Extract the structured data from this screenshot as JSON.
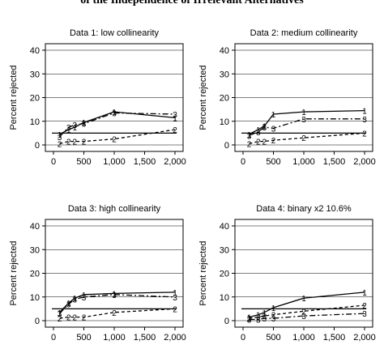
{
  "page": {
    "title": "of the Independence of Irrelevant Alternatives"
  },
  "chart_data": [
    {
      "type": "line",
      "title": "Data 1: low collinearity",
      "ylabel": "Percent rejected",
      "xlabel": "",
      "xlim": [
        0,
        2000
      ],
      "ylim": [
        0,
        40
      ],
      "xticks": [
        0,
        500,
        1000,
        1500,
        2000
      ],
      "xtick_labels": [
        "0",
        "500",
        "1,000",
        "1,500",
        "2,000"
      ],
      "yticks": [
        0,
        10,
        20,
        30,
        40
      ],
      "ytick_labels": [
        "0",
        "10",
        "20",
        "30",
        "40"
      ],
      "grid": true,
      "reference_line": 5,
      "x": [
        100,
        250,
        350,
        500,
        1000,
        2000
      ],
      "series": [
        {
          "marker": "1",
          "style": "solid",
          "values": [
            4.5,
            6.5,
            7.5,
            9.5,
            14,
            11.5
          ]
        },
        {
          "marker": "2",
          "style": "dash",
          "values": [
            0.5,
            1.5,
            1.5,
            1.5,
            2.5,
            6.5
          ]
        },
        {
          "marker": "3",
          "style": "dashdot",
          "values": [
            3.5,
            7.5,
            8.5,
            9,
            13.5,
            13
          ]
        }
      ]
    },
    {
      "type": "line",
      "title": "Data 2: medium collinearity",
      "ylabel": "Percent rejected",
      "xlabel": "",
      "xlim": [
        0,
        2000
      ],
      "ylim": [
        0,
        40
      ],
      "xticks": [
        0,
        500,
        1000,
        1500,
        2000
      ],
      "xtick_labels": [
        "0",
        "500",
        "1,000",
        "1,500",
        "2,000"
      ],
      "yticks": [
        0,
        10,
        20,
        30,
        40
      ],
      "ytick_labels": [
        "0",
        "10",
        "20",
        "30",
        "40"
      ],
      "grid": true,
      "reference_line": 5,
      "x": [
        100,
        250,
        350,
        500,
        1000,
        2000
      ],
      "series": [
        {
          "marker": "1",
          "style": "solid",
          "values": [
            4.5,
            6.5,
            8,
            13,
            14,
            14.5
          ]
        },
        {
          "marker": "2",
          "style": "dash",
          "values": [
            0.5,
            1.5,
            1.5,
            2,
            3,
            5
          ]
        },
        {
          "marker": "3",
          "style": "dashdot",
          "values": [
            4,
            5.5,
            7.5,
            7,
            11,
            11
          ]
        }
      ]
    },
    {
      "type": "line",
      "title": "Data 3: high collinearity",
      "ylabel": "Percent rejected",
      "xlabel": "",
      "xlim": [
        0,
        2000
      ],
      "ylim": [
        0,
        40
      ],
      "xticks": [
        0,
        500,
        1000,
        1500,
        2000
      ],
      "xtick_labels": [
        "0",
        "500",
        "1,000",
        "1,500",
        "2,000"
      ],
      "yticks": [
        0,
        10,
        20,
        30,
        40
      ],
      "ytick_labels": [
        "0",
        "10",
        "20",
        "30",
        "40"
      ],
      "grid": true,
      "reference_line": 5,
      "x": [
        100,
        250,
        350,
        500,
        1000,
        2000
      ],
      "series": [
        {
          "marker": "1",
          "style": "solid",
          "values": [
            3.5,
            7.5,
            9.5,
            11,
            11.5,
            12
          ]
        },
        {
          "marker": "2",
          "style": "dash",
          "values": [
            1,
            1.5,
            1.5,
            1.5,
            3.5,
            5
          ]
        },
        {
          "marker": "3",
          "style": "dashdot",
          "values": [
            3,
            7,
            9,
            10,
            11,
            10
          ]
        }
      ]
    },
    {
      "type": "line",
      "title": "Data 4: binary x2  10.6%",
      "ylabel": "Percent rejected",
      "xlabel": "",
      "xlim": [
        0,
        2000
      ],
      "ylim": [
        0,
        40
      ],
      "xticks": [
        0,
        500,
        1000,
        1500,
        2000
      ],
      "xtick_labels": [
        "0",
        "500",
        "1,000",
        "1,500",
        "2,000"
      ],
      "yticks": [
        0,
        10,
        20,
        30,
        40
      ],
      "ytick_labels": [
        "0",
        "10",
        "20",
        "30",
        "40"
      ],
      "grid": true,
      "reference_line": 5,
      "x": [
        100,
        250,
        350,
        500,
        1000,
        2000
      ],
      "series": [
        {
          "marker": "1",
          "style": "solid",
          "values": [
            1.5,
            2.5,
            3.5,
            5.5,
            9.5,
            12
          ]
        },
        {
          "marker": "2",
          "style": "dash",
          "values": [
            1,
            1.5,
            2,
            2.5,
            4,
            6.5
          ]
        },
        {
          "marker": "3",
          "style": "dashdot",
          "values": [
            0.5,
            0.5,
            1,
            1,
            2,
            3
          ]
        }
      ]
    }
  ]
}
